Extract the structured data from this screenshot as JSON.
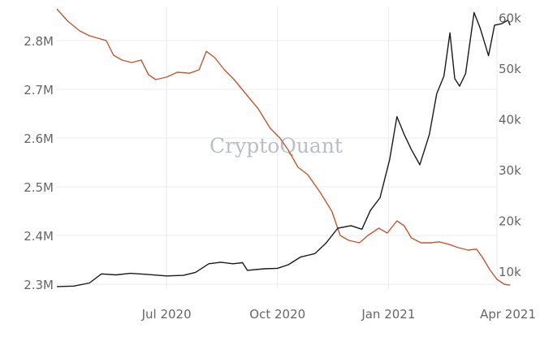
{
  "chart_data": {
    "type": "line",
    "x_range": [
      "2020-04-01",
      "2021-04-01"
    ],
    "x_ticks": [
      {
        "date": "2020-07-01",
        "label": "Jul 2020"
      },
      {
        "date": "2020-10-01",
        "label": "Oct 2020"
      },
      {
        "date": "2021-01-01",
        "label": "Jan 2021"
      },
      {
        "date": "2021-04-01",
        "label": "Apr 2021"
      }
    ],
    "y_left": {
      "range": [
        2290000,
        2870000
      ],
      "ticks": [
        {
          "value": 2300000,
          "label": "2.3M"
        },
        {
          "value": 2400000,
          "label": "2.4M"
        },
        {
          "value": 2500000,
          "label": "2.5M"
        },
        {
          "value": 2600000,
          "label": "2.6M"
        },
        {
          "value": 2700000,
          "label": "2.7M"
        },
        {
          "value": 2800000,
          "label": "2.8M"
        }
      ]
    },
    "y_right": {
      "range": [
        6500,
        62200
      ],
      "ticks": [
        {
          "value": 10000,
          "label": "10k"
        },
        {
          "value": 20000,
          "label": "20k"
        },
        {
          "value": 30000,
          "label": "30k"
        },
        {
          "value": 40000,
          "label": "40k"
        },
        {
          "value": 50000,
          "label": "50k"
        },
        {
          "value": 60000,
          "label": "60k"
        }
      ]
    },
    "grid": true,
    "watermark": "CryptoQuant",
    "series": [
      {
        "axis": "left",
        "color": "#c8562e",
        "points": [
          [
            "2020-04-01",
            2865000
          ],
          [
            "2020-04-10",
            2840000
          ],
          [
            "2020-04-20",
            2820000
          ],
          [
            "2020-04-28",
            2810000
          ],
          [
            "2020-05-05",
            2805000
          ],
          [
            "2020-05-12",
            2800000
          ],
          [
            "2020-05-18",
            2770000
          ],
          [
            "2020-05-25",
            2760000
          ],
          [
            "2020-06-02",
            2755000
          ],
          [
            "2020-06-10",
            2760000
          ],
          [
            "2020-06-16",
            2730000
          ],
          [
            "2020-06-22",
            2720000
          ],
          [
            "2020-07-01",
            2725000
          ],
          [
            "2020-07-10",
            2735000
          ],
          [
            "2020-07-20",
            2733000
          ],
          [
            "2020-07-28",
            2740000
          ],
          [
            "2020-08-03",
            2778000
          ],
          [
            "2020-08-10",
            2765000
          ],
          [
            "2020-08-18",
            2740000
          ],
          [
            "2020-08-26",
            2720000
          ],
          [
            "2020-09-05",
            2690000
          ],
          [
            "2020-09-15",
            2660000
          ],
          [
            "2020-09-25",
            2620000
          ],
          [
            "2020-10-03",
            2600000
          ],
          [
            "2020-10-10",
            2575000
          ],
          [
            "2020-10-18",
            2540000
          ],
          [
            "2020-10-26",
            2525000
          ],
          [
            "2020-11-05",
            2490000
          ],
          [
            "2020-11-15",
            2450000
          ],
          [
            "2020-11-22",
            2400000
          ],
          [
            "2020-11-29",
            2390000
          ],
          [
            "2020-12-08",
            2385000
          ],
          [
            "2020-12-15",
            2400000
          ],
          [
            "2020-12-24",
            2415000
          ],
          [
            "2020-12-31",
            2405000
          ],
          [
            "2021-01-08",
            2430000
          ],
          [
            "2021-01-14",
            2420000
          ],
          [
            "2021-01-20",
            2395000
          ],
          [
            "2021-01-28",
            2385000
          ],
          [
            "2021-02-05",
            2385000
          ],
          [
            "2021-02-12",
            2387000
          ],
          [
            "2021-02-20",
            2382000
          ],
          [
            "2021-02-28",
            2375000
          ],
          [
            "2021-03-08",
            2370000
          ],
          [
            "2021-03-15",
            2372000
          ],
          [
            "2021-03-20",
            2355000
          ],
          [
            "2021-03-26",
            2330000
          ],
          [
            "2021-04-01",
            2310000
          ],
          [
            "2021-04-07",
            2300000
          ],
          [
            "2021-04-12",
            2298000
          ]
        ]
      },
      {
        "axis": "right",
        "color": "#1a1a1a",
        "points": [
          [
            "2020-04-01",
            7000
          ],
          [
            "2020-04-15",
            7100
          ],
          [
            "2020-04-28",
            7700
          ],
          [
            "2020-05-08",
            9500
          ],
          [
            "2020-05-20",
            9300
          ],
          [
            "2020-06-01",
            9600
          ],
          [
            "2020-06-15",
            9400
          ],
          [
            "2020-07-01",
            9100
          ],
          [
            "2020-07-15",
            9200
          ],
          [
            "2020-07-25",
            9800
          ],
          [
            "2020-08-05",
            11500
          ],
          [
            "2020-08-15",
            11800
          ],
          [
            "2020-08-25",
            11500
          ],
          [
            "2020-09-02",
            11700
          ],
          [
            "2020-09-06",
            10200
          ],
          [
            "2020-09-20",
            10500
          ],
          [
            "2020-10-01",
            10600
          ],
          [
            "2020-10-10",
            11300
          ],
          [
            "2020-10-20",
            12800
          ],
          [
            "2020-11-01",
            13500
          ],
          [
            "2020-11-10",
            15500
          ],
          [
            "2020-11-20",
            18500
          ],
          [
            "2020-12-01",
            19000
          ],
          [
            "2020-12-10",
            18300
          ],
          [
            "2020-12-17",
            22000
          ],
          [
            "2020-12-25",
            24500
          ],
          [
            "2021-01-02",
            32000
          ],
          [
            "2021-01-08",
            40500
          ],
          [
            "2021-01-14",
            37000
          ],
          [
            "2021-01-20",
            34000
          ],
          [
            "2021-01-27",
            31000
          ],
          [
            "2021-02-04",
            37000
          ],
          [
            "2021-02-10",
            45000
          ],
          [
            "2021-02-16",
            48500
          ],
          [
            "2021-02-21",
            57000
          ],
          [
            "2021-02-25",
            48000
          ],
          [
            "2021-03-01",
            46500
          ],
          [
            "2021-03-06",
            49000
          ],
          [
            "2021-03-13",
            61000
          ],
          [
            "2021-03-18",
            58000
          ],
          [
            "2021-03-25",
            52500
          ],
          [
            "2021-03-30",
            58500
          ],
          [
            "2021-04-05",
            58800
          ],
          [
            "2021-04-10",
            59500
          ],
          [
            "2021-04-12",
            58500
          ]
        ]
      }
    ]
  }
}
